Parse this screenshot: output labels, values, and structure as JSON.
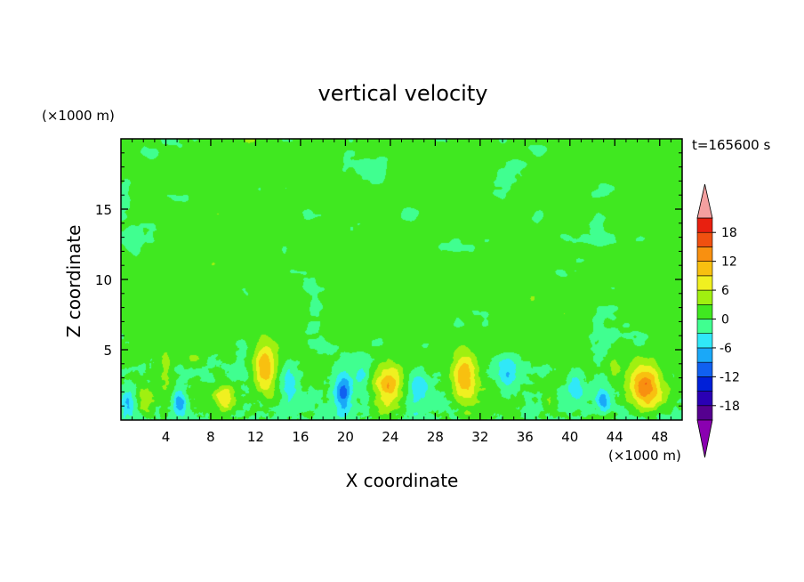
{
  "chart_data": {
    "type": "heatmap",
    "title": "vertical velocity",
    "xlabel": "X coordinate",
    "ylabel": "Z coordinate",
    "x_unit": "(×1000 m)",
    "y_unit": "(×1000 m)",
    "time_label": "t=165600 s",
    "xlim": [
      0,
      50
    ],
    "ylim": [
      0,
      20
    ],
    "x_ticks": [
      4,
      8,
      12,
      16,
      20,
      24,
      28,
      32,
      36,
      40,
      44,
      48
    ],
    "y_ticks": [
      5,
      10,
      15
    ],
    "colorbar": {
      "levels": [
        -21,
        -18,
        -15,
        -12,
        -9,
        -6,
        -3,
        0,
        3,
        6,
        9,
        12,
        15,
        18,
        21
      ],
      "labels": [
        18,
        12,
        6,
        0,
        -6,
        -12,
        -18
      ],
      "colors": [
        "#55008f",
        "#2a00b4",
        "#0020d8",
        "#1060f0",
        "#1aa8f8",
        "#30e8f8",
        "#40ff90",
        "#40e820",
        "#a0f010",
        "#f0f020",
        "#f8c010",
        "#f89010",
        "#f05010",
        "#e82010",
        "#f4a0a0"
      ],
      "under_color": "#8a00b0",
      "over_color": "#f4a0a0"
    },
    "background_value": 1,
    "updrafts": [
      {
        "x": 2.2,
        "z": 1.2,
        "sx": 0.6,
        "sz": 0.9,
        "peak": 5
      },
      {
        "x": 4.0,
        "z": 3.4,
        "sx": 0.6,
        "sz": 1.2,
        "peak": 4
      },
      {
        "x": 9.3,
        "z": 1.6,
        "sx": 1.0,
        "sz": 1.0,
        "peak": 8
      },
      {
        "x": 12.8,
        "z": 3.7,
        "sx": 1.0,
        "sz": 1.7,
        "peak": 12
      },
      {
        "x": 23.8,
        "z": 2.3,
        "sx": 1.3,
        "sz": 1.7,
        "peak": 12
      },
      {
        "x": 30.6,
        "z": 3.2,
        "sx": 1.1,
        "sz": 1.9,
        "peak": 10
      },
      {
        "x": 38.2,
        "z": 1.2,
        "sx": 0.6,
        "sz": 1.0,
        "peak": 4
      },
      {
        "x": 46.8,
        "z": 2.3,
        "sx": 1.4,
        "sz": 1.6,
        "peak": 13
      },
      {
        "x": 6.5,
        "z": 4.3,
        "sx": 0.8,
        "sz": 0.5,
        "peak": 3
      },
      {
        "x": 44.0,
        "z": 3.6,
        "sx": 0.6,
        "sz": 0.9,
        "peak": 3
      }
    ],
    "downdrafts": [
      {
        "x": 0.6,
        "z": 1.3,
        "sx": 0.6,
        "sz": 1.0,
        "peak": -6
      },
      {
        "x": 5.2,
        "z": 1.3,
        "sx": 0.6,
        "sz": 0.9,
        "peak": -9
      },
      {
        "x": 15.0,
        "z": 2.5,
        "sx": 0.8,
        "sz": 1.5,
        "peak": -5
      },
      {
        "x": 19.8,
        "z": 2.0,
        "sx": 0.8,
        "sz": 1.2,
        "peak": -12
      },
      {
        "x": 21.5,
        "z": 3.2,
        "sx": 0.7,
        "sz": 1.0,
        "peak": -4
      },
      {
        "x": 26.5,
        "z": 2.5,
        "sx": 0.8,
        "sz": 1.2,
        "peak": -4
      },
      {
        "x": 34.5,
        "z": 3.3,
        "sx": 0.9,
        "sz": 1.3,
        "peak": -5
      },
      {
        "x": 40.5,
        "z": 2.5,
        "sx": 0.6,
        "sz": 1.0,
        "peak": -5
      },
      {
        "x": 43.0,
        "z": 1.3,
        "sx": 0.6,
        "sz": 0.9,
        "peak": -8
      }
    ]
  }
}
